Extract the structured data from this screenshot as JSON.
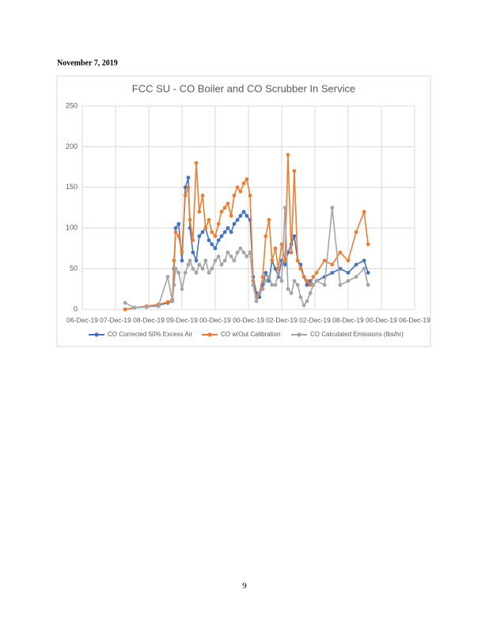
{
  "header": {
    "date": "November 7, 2019"
  },
  "chart_data": {
    "type": "line",
    "title": "FCC SU - CO Boiler and CO Scrubber In Service",
    "x": [
      1.29,
      1.57,
      1.93,
      2.29,
      2.57,
      2.71,
      2.76,
      2.81,
      2.9,
      3.0,
      3.1,
      3.19,
      3.24,
      3.33,
      3.43,
      3.52,
      3.62,
      3.71,
      3.81,
      3.9,
      4.0,
      4.1,
      4.19,
      4.29,
      4.38,
      4.48,
      4.57,
      4.67,
      4.76,
      4.86,
      4.95,
      5.05,
      5.14,
      5.24,
      5.33,
      5.43,
      5.52,
      5.62,
      5.71,
      5.81,
      5.9,
      6.0,
      6.1,
      6.19,
      6.29,
      6.38,
      6.48,
      6.57,
      6.67,
      6.76,
      6.86,
      6.95,
      7.05,
      7.29,
      7.52,
      7.76,
      8.0,
      8.24,
      8.48,
      8.6
    ],
    "series": [
      {
        "name": "CO Corrected 50% Excess Air",
        "color": "#4472c4",
        "values": [
          0,
          2,
          3,
          5,
          8,
          10,
          50,
          100,
          105,
          60,
          150,
          162,
          100,
          70,
          60,
          90,
          95,
          100,
          85,
          80,
          75,
          85,
          90,
          95,
          100,
          95,
          105,
          110,
          115,
          120,
          115,
          110,
          40,
          20,
          15,
          30,
          45,
          35,
          60,
          50,
          40,
          60,
          55,
          70,
          80,
          90,
          60,
          55,
          40,
          30,
          35,
          30,
          35,
          40,
          45,
          50,
          45,
          55,
          60,
          45
        ]
      },
      {
        "name": "CO w/Out Calibration",
        "color": "#ed7d31",
        "values": [
          0,
          2,
          4,
          6,
          9,
          12,
          60,
          95,
          90,
          70,
          140,
          150,
          110,
          85,
          180,
          120,
          140,
          100,
          110,
          95,
          90,
          105,
          120,
          125,
          130,
          115,
          140,
          150,
          145,
          155,
          160,
          140,
          35,
          15,
          20,
          40,
          90,
          110,
          60,
          75,
          50,
          80,
          60,
          190,
          70,
          170,
          60,
          50,
          40,
          35,
          30,
          40,
          45,
          60,
          55,
          70,
          60,
          95,
          120,
          80
        ]
      },
      {
        "name": "CO Calculated Emissions (lbs/hr)",
        "color": "#a5a5a5",
        "values": [
          8,
          2,
          3,
          4,
          40,
          10,
          30,
          50,
          45,
          25,
          45,
          55,
          60,
          50,
          45,
          55,
          50,
          60,
          45,
          50,
          60,
          65,
          55,
          60,
          70,
          65,
          60,
          70,
          75,
          70,
          65,
          70,
          30,
          10,
          20,
          25,
          35,
          40,
          30,
          30,
          45,
          35,
          125,
          25,
          20,
          35,
          30,
          15,
          5,
          10,
          20,
          30,
          35,
          30,
          125,
          30,
          35,
          40,
          50,
          30
        ]
      }
    ],
    "xlim": [
      0,
      10
    ],
    "xticks": [
      {
        "value": 0,
        "label": "06-Dec-19"
      },
      {
        "value": 1,
        "label": "07-Dec-19"
      },
      {
        "value": 2,
        "label": "08-Dec-19"
      },
      {
        "value": 3,
        "label": "09-Dec-19"
      },
      {
        "value": 4,
        "label": "00-Dec-19"
      },
      {
        "value": 5,
        "label": "00-Dec-19"
      },
      {
        "value": 6,
        "label": "02-Dec-19"
      },
      {
        "value": 7,
        "label": "02-Dec-19"
      },
      {
        "value": 8,
        "label": "08-Dec-19"
      },
      {
        "value": 9,
        "label": "00-Dec-19"
      },
      {
        "value": 10,
        "label": "06-Dec-19"
      }
    ],
    "ylim": [
      0,
      250
    ],
    "yticks": [
      0,
      50,
      100,
      150,
      200,
      250
    ],
    "grid": true,
    "legend": "bottom"
  },
  "footer": {
    "page_number": "9"
  }
}
